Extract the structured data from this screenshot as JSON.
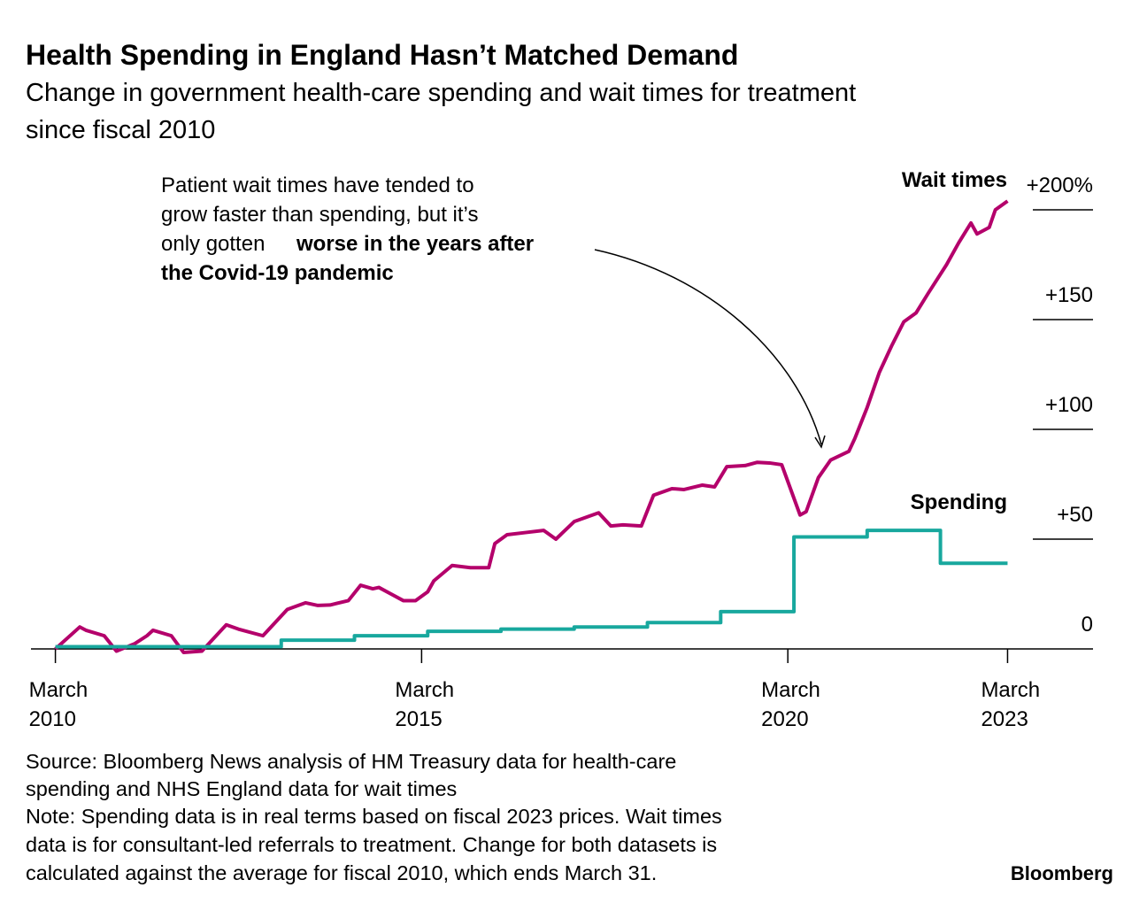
{
  "chart_data": {
    "type": "line",
    "title": "Health Spending in England Hasn’t Matched Demand",
    "subtitle": [
      "Change in government health-care spending and wait times for treatment",
      "since fiscal 2010"
    ],
    "annotation": [
      "Patient wait times have tended to",
      "grow faster than spending, but it’s",
      "only gotten"
    ],
    "annotation_bold": [
      "worse in the years after",
      "the Covid-19 pandemic"
    ],
    "source": [
      "Source: Bloomberg News analysis of HM Treasury data for health-care",
      "spending and NHS England data for wait times"
    ],
    "note": [
      "Note: Spending data is in real terms based on fiscal 2023 prices. Wait times",
      "data is for consultant-led referrals to treatment. Change for both datasets is",
      "calculated against the average for fiscal 2010, which ends March 31."
    ],
    "brand": "Bloomberg",
    "xlim": [
      "2009-11",
      "2024-05"
    ],
    "xticks": [
      {
        "value": "2010-03",
        "label": "March 2010"
      },
      {
        "value": "2015-03",
        "label": "March 2015"
      },
      {
        "value": "2020-03",
        "label": "March 2020"
      },
      {
        "value": "2023-03",
        "label": "March 2023"
      }
    ],
    "ylim": [
      0,
      200
    ],
    "yticks": [
      {
        "value": 0,
        "label": "0"
      },
      {
        "value": 50,
        "label": "+50"
      },
      {
        "value": 100,
        "label": "+100"
      },
      {
        "value": 150,
        "label": "+150"
      },
      {
        "value": 200,
        "label": "+200%"
      }
    ],
    "series": [
      {
        "name": "Wait times",
        "color": "#b4006b",
        "step": false,
        "x": [
          "2010-03",
          "2010-07",
          "2010-08",
          "2010-11",
          "2011-01",
          "2011-04",
          "2011-06",
          "2011-07",
          "2011-10",
          "2011-12",
          "2012-03",
          "2012-07",
          "2012-09",
          "2013-01",
          "2013-05",
          "2013-08",
          "2013-10",
          "2013-12",
          "2014-03",
          "2014-05",
          "2014-07",
          "2014-08",
          "2014-10",
          "2014-12",
          "2015-02",
          "2015-04",
          "2015-05",
          "2015-08",
          "2015-11",
          "2016-02",
          "2016-03",
          "2016-05",
          "2016-08",
          "2016-11",
          "2017-01",
          "2017-04",
          "2017-08",
          "2017-10",
          "2017-12",
          "2018-03",
          "2018-05",
          "2018-08",
          "2018-10",
          "2019-01",
          "2019-03",
          "2019-05",
          "2019-08",
          "2019-10",
          "2019-12",
          "2020-02",
          "2020-05",
          "2020-06",
          "2020-08",
          "2020-10",
          "2021-01",
          "2021-02",
          "2021-04",
          "2021-06",
          "2021-08",
          "2021-10",
          "2021-12",
          "2022-02",
          "2022-05",
          "2022-07",
          "2022-09",
          "2022-10",
          "2022-12",
          "2023-01",
          "2023-03"
        ],
        "values": [
          0,
          10,
          8.5,
          6,
          -1,
          2.4,
          6,
          8.5,
          6,
          -1.6,
          -1,
          11,
          9,
          6,
          18,
          21,
          19.8,
          20,
          22,
          29,
          27.4,
          28,
          25,
          22,
          22,
          26,
          31,
          38,
          37,
          37,
          48,
          52,
          53,
          54,
          50,
          58,
          62,
          56,
          56.5,
          56,
          70,
          73,
          72.6,
          74.6,
          73.8,
          83,
          83.5,
          85,
          84.7,
          83.9,
          61,
          62.5,
          78,
          86,
          90,
          96,
          110,
          126,
          138,
          149,
          153,
          162,
          175,
          185,
          194,
          189,
          192,
          200,
          204
        ]
      },
      {
        "name": "Spending",
        "color": "#18a89e",
        "step": true,
        "x": [
          "2010-03",
          "2013-04",
          "2014-04",
          "2015-04",
          "2016-04",
          "2017-04",
          "2018-04",
          "2019-04",
          "2020-04",
          "2021-04",
          "2022-04",
          "2023-03"
        ],
        "values": [
          1,
          4,
          6,
          8,
          9,
          10,
          12,
          17,
          51,
          54,
          39,
          39
        ]
      }
    ]
  }
}
